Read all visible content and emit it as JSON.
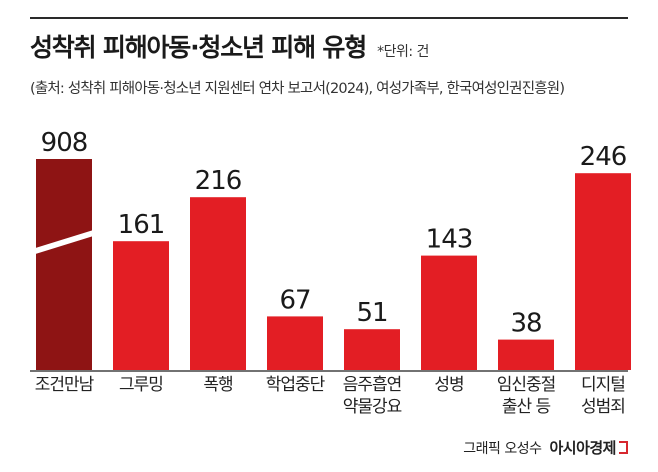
{
  "header": {
    "title": "성착취 피해아동·청소년 피해 유형",
    "unit": "*단위: 건",
    "source": "(출처: 성착취 피해아동·청소년 지원센터 연차 보고서(2024), 여성가족부, 한국여성인권진흥원)"
  },
  "chart_data": {
    "type": "bar",
    "title": "성착취 피해아동·청소년 피해 유형",
    "categories": [
      [
        "조건만남"
      ],
      [
        "그루밍"
      ],
      [
        "폭행"
      ],
      [
        "학업중단"
      ],
      [
        "음주흡연",
        "약물강요"
      ],
      [
        "성병"
      ],
      [
        "임신중절",
        "출산 등"
      ],
      [
        "디지털",
        "성범죄"
      ]
    ],
    "values": [
      908,
      161,
      216,
      67,
      51,
      143,
      38,
      246
    ],
    "value_labels": [
      "908",
      "161",
      "216",
      "67",
      "51",
      "143",
      "38",
      "246"
    ],
    "axis_break_on": [
      "조건만남"
    ],
    "colors": {
      "highlight": "#8e1414",
      "bar": "#e31e24",
      "axis": "#444444"
    },
    "grid": false,
    "legend": "none"
  },
  "footer": {
    "credit": "그래픽 오성수",
    "brand": "아시아경제"
  }
}
